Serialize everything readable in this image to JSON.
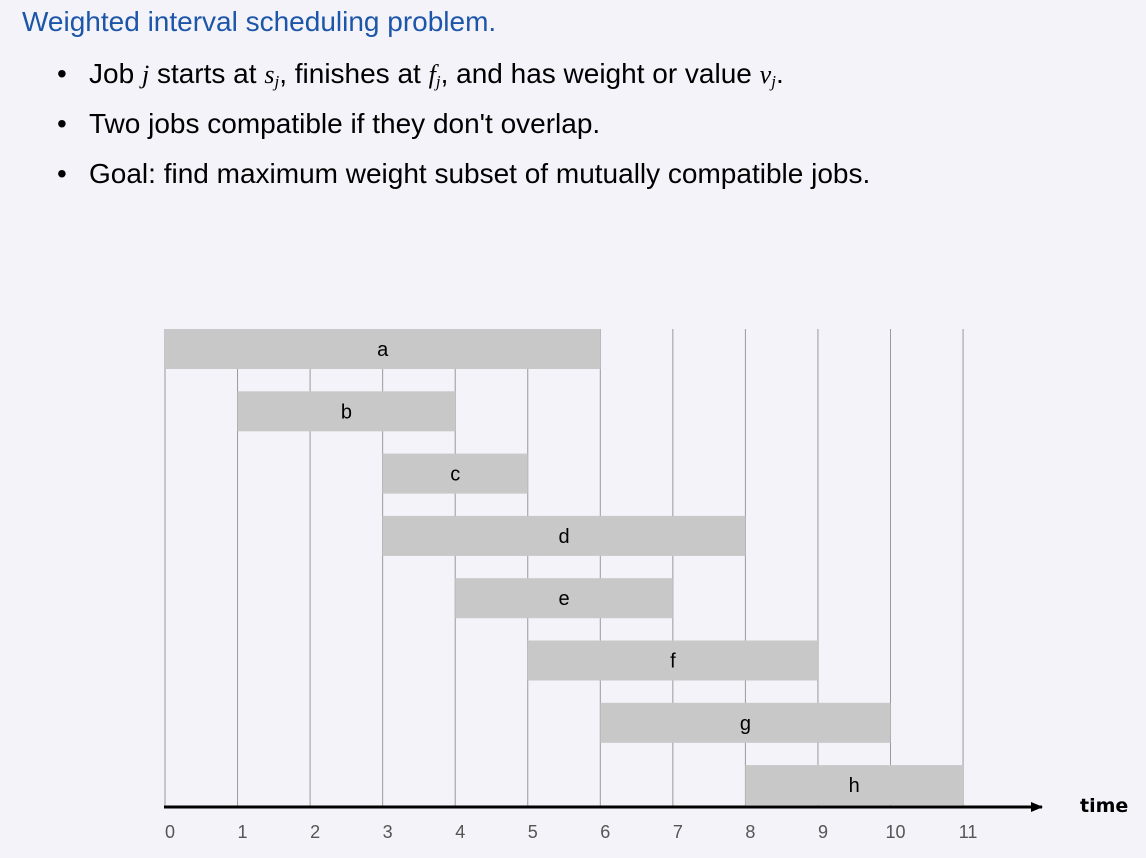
{
  "title": "Weighted interval scheduling problem.",
  "bullets": {
    "b1": {
      "t1": "Job ",
      "j": "j",
      "t2": " starts at ",
      "s": "s",
      "s_sub": "j",
      "t3": ", finishes at ",
      "f": "f",
      "f_sub": "j",
      "t4": ", and has weight or value ",
      "v": "v",
      "v_sub": "j",
      "t5": "."
    },
    "b2": "Two jobs compatible if they don't overlap.",
    "b3": "Goal:  find maximum weight subset of mutually compatible jobs."
  },
  "chart_data": {
    "type": "gantt",
    "axis_label": "time",
    "ticks": [
      "0",
      "1",
      "2",
      "3",
      "4",
      "5",
      "6",
      "7",
      "8",
      "9",
      "10",
      "11"
    ],
    "xlim": [
      0,
      11
    ],
    "bar_color": "#c8c8c8",
    "jobs": [
      {
        "name": "a",
        "start": 0,
        "finish": 6
      },
      {
        "name": "b",
        "start": 1,
        "finish": 4
      },
      {
        "name": "c",
        "start": 3,
        "finish": 5
      },
      {
        "name": "d",
        "start": 3,
        "finish": 8
      },
      {
        "name": "e",
        "start": 4,
        "finish": 7
      },
      {
        "name": "f",
        "start": 5,
        "finish": 9
      },
      {
        "name": "g",
        "start": 6,
        "finish": 10
      },
      {
        "name": "h",
        "start": 8,
        "finish": 11
      }
    ]
  }
}
